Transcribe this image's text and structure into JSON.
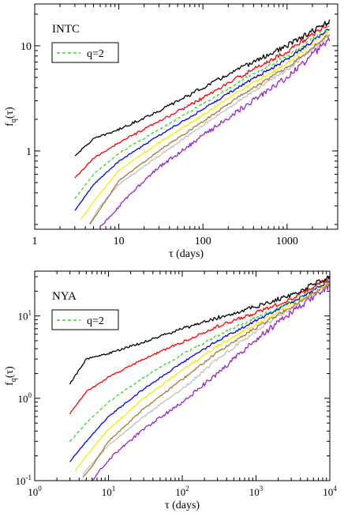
{
  "chart_data": [
    {
      "type": "line",
      "title": "INTC",
      "xlabel": "τ (days)",
      "ylabel": "f₍q₎(τ)",
      "ylabel_main": "f",
      "ylabel_sub": "q",
      "ylabel_arg": "(τ)",
      "xscale": "log",
      "yscale": "log",
      "xlim": [
        1,
        4000
      ],
      "ylim": [
        0.18,
        25
      ],
      "x_ticks": [
        {
          "value": 1,
          "label": "1"
        },
        {
          "value": 10,
          "label": "10"
        },
        {
          "value": 100,
          "label": "100"
        },
        {
          "value": 1000,
          "label": "1000"
        }
      ],
      "y_ticks": [
        {
          "value": 1,
          "label": "1"
        },
        {
          "value": 10,
          "label": "10"
        }
      ],
      "legend": {
        "position": "top-left",
        "entries": [
          {
            "label": "q=2",
            "color": "#22dd22",
            "dash": true
          }
        ]
      },
      "series": [
        {
          "color": "#000000",
          "x": [
            3,
            5,
            10,
            30,
            100,
            300,
            1000,
            3200
          ],
          "y": [
            0.9,
            1.3,
            1.6,
            2.4,
            4.0,
            6.3,
            10.0,
            17.0
          ],
          "noise": 0.35
        },
        {
          "color": "#ff0000",
          "x": [
            3,
            5,
            10,
            30,
            100,
            300,
            1000,
            3200
          ],
          "y": [
            0.55,
            0.85,
            1.2,
            1.9,
            3.2,
            5.3,
            8.8,
            16.5
          ],
          "noise": 0.3
        },
        {
          "color": "#22dd22",
          "dash": true,
          "x": [
            3,
            5,
            10,
            30,
            100,
            300,
            1000,
            3200
          ],
          "y": [
            0.35,
            0.6,
            0.95,
            1.6,
            2.8,
            4.8,
            8.0,
            15.0
          ],
          "noise": 0.2
        },
        {
          "color": "#0000ff",
          "x": [
            3,
            5,
            10,
            30,
            100,
            300,
            1000,
            3200
          ],
          "y": [
            0.27,
            0.48,
            0.8,
            1.4,
            2.5,
            4.3,
            7.4,
            14.5
          ],
          "noise": 0.2
        },
        {
          "color": "#eeee00",
          "x": [
            3.5,
            5,
            10,
            30,
            100,
            300,
            1000,
            3200
          ],
          "y": [
            0.22,
            0.33,
            0.65,
            1.2,
            2.2,
            3.9,
            6.8,
            14.0
          ],
          "noise": 0.2
        },
        {
          "color": "#aa7733",
          "x": [
            4.5,
            6,
            10,
            30,
            100,
            300,
            1000,
            3200
          ],
          "y": [
            0.2,
            0.28,
            0.52,
            1.0,
            1.9,
            3.5,
            6.2,
            13.0
          ],
          "noise": 0.2
        },
        {
          "color": "#c0c0c0",
          "x": [
            4.5,
            6,
            10,
            30,
            100,
            300,
            1000,
            3200
          ],
          "y": [
            0.2,
            0.3,
            0.48,
            0.9,
            1.75,
            3.2,
            5.9,
            12.5
          ],
          "noise": 0.25
        },
        {
          "color": "#9922cc",
          "x": [
            6,
            8,
            12,
            30,
            100,
            300,
            1000,
            3200
          ],
          "y": [
            0.19,
            0.24,
            0.35,
            0.7,
            1.4,
            2.6,
            5.0,
            11.5
          ],
          "noise": 0.45
        }
      ]
    },
    {
      "type": "line",
      "title": "NYA",
      "xlabel": "τ (days)",
      "ylabel": "f₍q₎(τ)",
      "ylabel_main": "f",
      "ylabel_sub": "q",
      "ylabel_arg": "(τ)",
      "xscale": "log",
      "yscale": "log",
      "xlim": [
        1,
        10000
      ],
      "ylim": [
        0.1,
        35
      ],
      "x_ticks": [
        {
          "value": 1,
          "base": "10",
          "exp": "0"
        },
        {
          "value": 10,
          "base": "10",
          "exp": "1"
        },
        {
          "value": 100,
          "base": "10",
          "exp": "2"
        },
        {
          "value": 1000,
          "base": "10",
          "exp": "3"
        },
        {
          "value": 10000,
          "base": "10",
          "exp": "4"
        }
      ],
      "y_ticks": [
        {
          "value": 0.1,
          "base": "10",
          "exp": "-1"
        },
        {
          "value": 1,
          "base": "10",
          "exp": "0"
        },
        {
          "value": 10,
          "base": "10",
          "exp": "1"
        }
      ],
      "legend": {
        "position": "top-left",
        "entries": [
          {
            "label": "q=2",
            "color": "#22dd22",
            "dash": true
          }
        ]
      },
      "series": [
        {
          "color": "#000000",
          "x": [
            3,
            5,
            10,
            30,
            100,
            300,
            1000,
            3000,
            10000
          ],
          "y": [
            1.5,
            3.0,
            3.5,
            4.8,
            7.0,
            9.5,
            13.0,
            18.0,
            30.0
          ],
          "noise": 0.4
        },
        {
          "color": "#ff0000",
          "x": [
            3,
            5,
            10,
            30,
            100,
            300,
            1000,
            3000,
            10000
          ],
          "y": [
            0.65,
            1.2,
            1.8,
            3.0,
            4.8,
            7.5,
            11.0,
            16.0,
            29.0
          ],
          "noise": 0.35
        },
        {
          "color": "#22dd22",
          "dash": true,
          "x": [
            3,
            5,
            10,
            30,
            100,
            300,
            1000,
            3000,
            10000
          ],
          "y": [
            0.3,
            0.5,
            0.9,
            1.8,
            3.4,
            5.8,
            9.5,
            15.0,
            28.0
          ],
          "noise": 0.25
        },
        {
          "color": "#0000ff",
          "x": [
            3,
            5,
            10,
            30,
            100,
            300,
            1000,
            3000,
            10000
          ],
          "y": [
            0.17,
            0.3,
            0.6,
            1.3,
            2.7,
            5.0,
            8.8,
            14.5,
            27.0
          ],
          "noise": 0.25
        },
        {
          "color": "#eeee00",
          "x": [
            3.5,
            5,
            10,
            30,
            100,
            300,
            1000,
            3000,
            10000
          ],
          "y": [
            0.13,
            0.2,
            0.42,
            1.0,
            2.2,
            4.3,
            8.0,
            14.0,
            26.0
          ],
          "noise": 0.3
        },
        {
          "color": "#aa7733",
          "x": [
            4.5,
            6,
            10,
            30,
            100,
            300,
            1000,
            3000,
            10000
          ],
          "y": [
            0.11,
            0.15,
            0.3,
            0.75,
            1.7,
            3.6,
            7.2,
            13.0,
            25.0
          ],
          "noise": 0.3
        },
        {
          "color": "#c0c0c0",
          "x": [
            4.5,
            6,
            10,
            30,
            100,
            300,
            1000,
            3000,
            10000
          ],
          "y": [
            0.12,
            0.16,
            0.27,
            0.6,
            1.3,
            3.0,
            6.5,
            12.5,
            25.0
          ],
          "noise": 0.35
        },
        {
          "color": "#9922cc",
          "x": [
            6,
            8,
            12,
            30,
            100,
            300,
            1000,
            3000,
            10000
          ],
          "y": [
            0.1,
            0.14,
            0.21,
            0.42,
            0.9,
            2.0,
            5.2,
            11.0,
            24.0
          ],
          "noise": 0.55
        }
      ]
    }
  ]
}
